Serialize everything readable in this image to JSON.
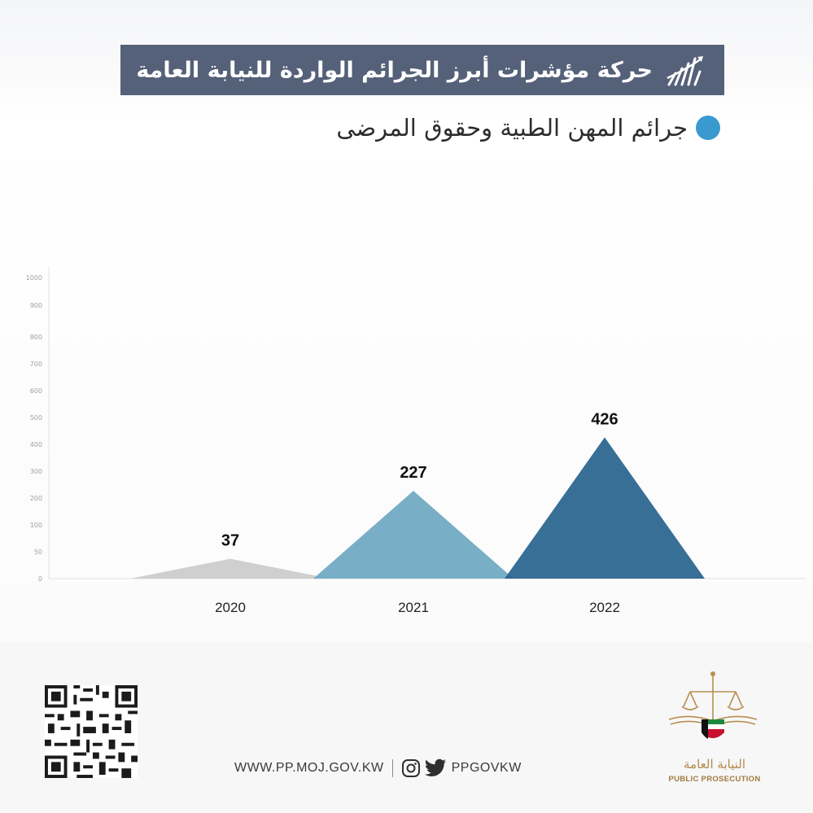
{
  "header": {
    "title": "حركة مؤشرات أبرز الجرائم الواردة للنيابة العامة",
    "title_icon": "rising-bars-chart-icon"
  },
  "chart_data": {
    "type": "area",
    "title": "جرائم المهن الطبية وحقوق المرضى",
    "categories": [
      "2020",
      "2021",
      "2022"
    ],
    "values": [
      37,
      227,
      426
    ],
    "y_ticks": [
      0,
      50,
      100,
      200,
      300,
      400,
      500,
      600,
      700,
      800,
      900,
      1000
    ],
    "ylim": [
      0,
      1000
    ],
    "xlabel": "",
    "ylabel": "",
    "grid": false,
    "legend": "none",
    "colors": [
      "#cfcfcf",
      "#6ea9c3",
      "#28648f"
    ],
    "marker_color": "#3a9ad0"
  },
  "footer": {
    "website": "WWW.PP.MOJ.GOV.KW",
    "social_handle": "PPGOVKW",
    "social_icons": [
      "instagram-icon",
      "twitter-icon"
    ],
    "qr_icon": "qr-code-icon",
    "logo_text_ar": "النيابة العامة",
    "logo_text_en": "PUBLIC PROSECUTION"
  }
}
